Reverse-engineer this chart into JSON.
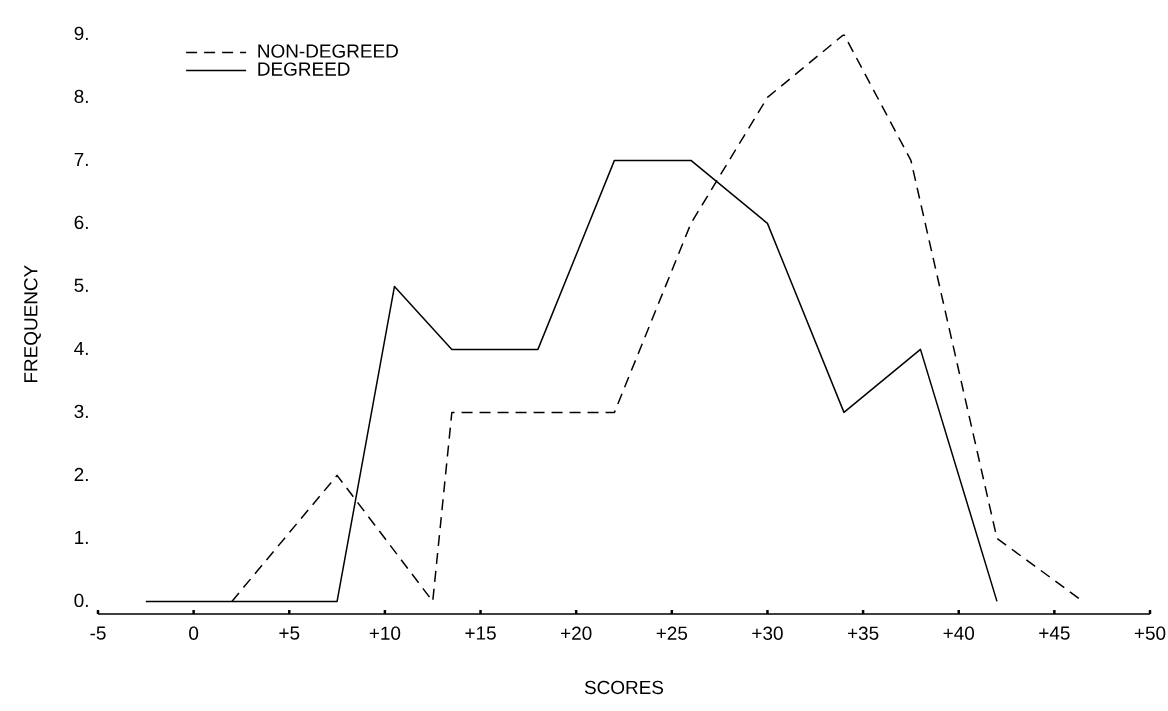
{
  "chart_data": {
    "type": "line",
    "xlabel": "SCORES",
    "ylabel": "FREQUENCY",
    "xlim": [
      -5,
      50
    ],
    "ylim": [
      -0.2,
      9
    ],
    "xticks": [
      {
        "value": -5,
        "label": "-5"
      },
      {
        "value": 0,
        "label": "0"
      },
      {
        "value": 5,
        "label": "+5"
      },
      {
        "value": 10,
        "label": "+10"
      },
      {
        "value": 15,
        "label": "+15"
      },
      {
        "value": 20,
        "label": "+20"
      },
      {
        "value": 25,
        "label": "+25"
      },
      {
        "value": 30,
        "label": "+30"
      },
      {
        "value": 35,
        "label": "+35"
      },
      {
        "value": 40,
        "label": "+40"
      },
      {
        "value": 45,
        "label": "+45"
      },
      {
        "value": 50,
        "label": "+50"
      }
    ],
    "yticks": [
      {
        "value": 0,
        "label": "0."
      },
      {
        "value": 1,
        "label": "1."
      },
      {
        "value": 2,
        "label": "2."
      },
      {
        "value": 3,
        "label": "3."
      },
      {
        "value": 4,
        "label": "4."
      },
      {
        "value": 5,
        "label": "5."
      },
      {
        "value": 6,
        "label": "6."
      },
      {
        "value": 7,
        "label": "7."
      },
      {
        "value": 8,
        "label": "8."
      },
      {
        "value": 9,
        "label": "9."
      }
    ],
    "grid": false,
    "legend": "top left",
    "marker": "none",
    "series": [
      {
        "name": "NON-DEGREED",
        "color": "#000000",
        "line_style": "dashed",
        "x": [
          2,
          7.5,
          12.5,
          13.5,
          22,
          26,
          30,
          34,
          37.5,
          42,
          46.5
        ],
        "values": [
          0,
          2,
          0,
          3,
          3,
          6,
          8,
          9,
          7,
          1,
          0
        ]
      },
      {
        "name": "DEGREED",
        "color": "#000000",
        "line_style": "solid",
        "x": [
          -2.5,
          7.5,
          10.5,
          13.5,
          18,
          22,
          26,
          30,
          34,
          38,
          42
        ],
        "values": [
          0,
          0,
          5,
          4,
          4,
          7,
          7,
          6,
          3,
          4,
          0
        ]
      }
    ]
  }
}
